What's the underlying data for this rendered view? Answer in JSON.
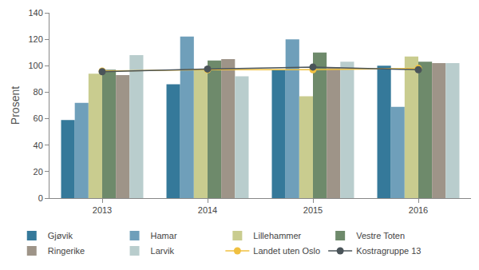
{
  "chart_data": {
    "type": "bar",
    "y_label": "Prosent",
    "categories": [
      "2013",
      "2014",
      "2015",
      "2016"
    ],
    "ylim": [
      0,
      140
    ],
    "yticks": [
      0,
      20,
      40,
      60,
      80,
      100,
      120,
      140
    ],
    "grid": false,
    "legend": "bottom",
    "series": [
      {
        "name": "Gjøvik",
        "type": "bar",
        "color": "#35799a",
        "values": [
          59,
          86,
          97,
          100
        ]
      },
      {
        "name": "Hamar",
        "type": "bar",
        "color": "#6f9fba",
        "values": [
          72,
          122,
          120,
          69
        ]
      },
      {
        "name": "Lillehammer",
        "type": "bar",
        "color": "#c9cc8f",
        "values": [
          94,
          97,
          77,
          107
        ]
      },
      {
        "name": "Vestre Toten",
        "type": "bar",
        "color": "#6e8a6b",
        "values": [
          97,
          104,
          110,
          103
        ]
      },
      {
        "name": "Ringerike",
        "type": "bar",
        "color": "#9e9488",
        "values": [
          93,
          105,
          99,
          102
        ]
      },
      {
        "name": "Larvik",
        "type": "bar",
        "color": "#b9cdcd",
        "values": [
          108,
          92,
          103,
          102
        ]
      },
      {
        "name": "Landet uten Oslo",
        "type": "line",
        "color": "#f0c040",
        "marker": "circle",
        "values": [
          96,
          97,
          97,
          98
        ]
      },
      {
        "name": "Kostragruppe 13",
        "type": "line",
        "color": "#4a5459",
        "marker": "circle",
        "values": [
          95.5,
          97.5,
          99,
          97
        ]
      }
    ]
  }
}
